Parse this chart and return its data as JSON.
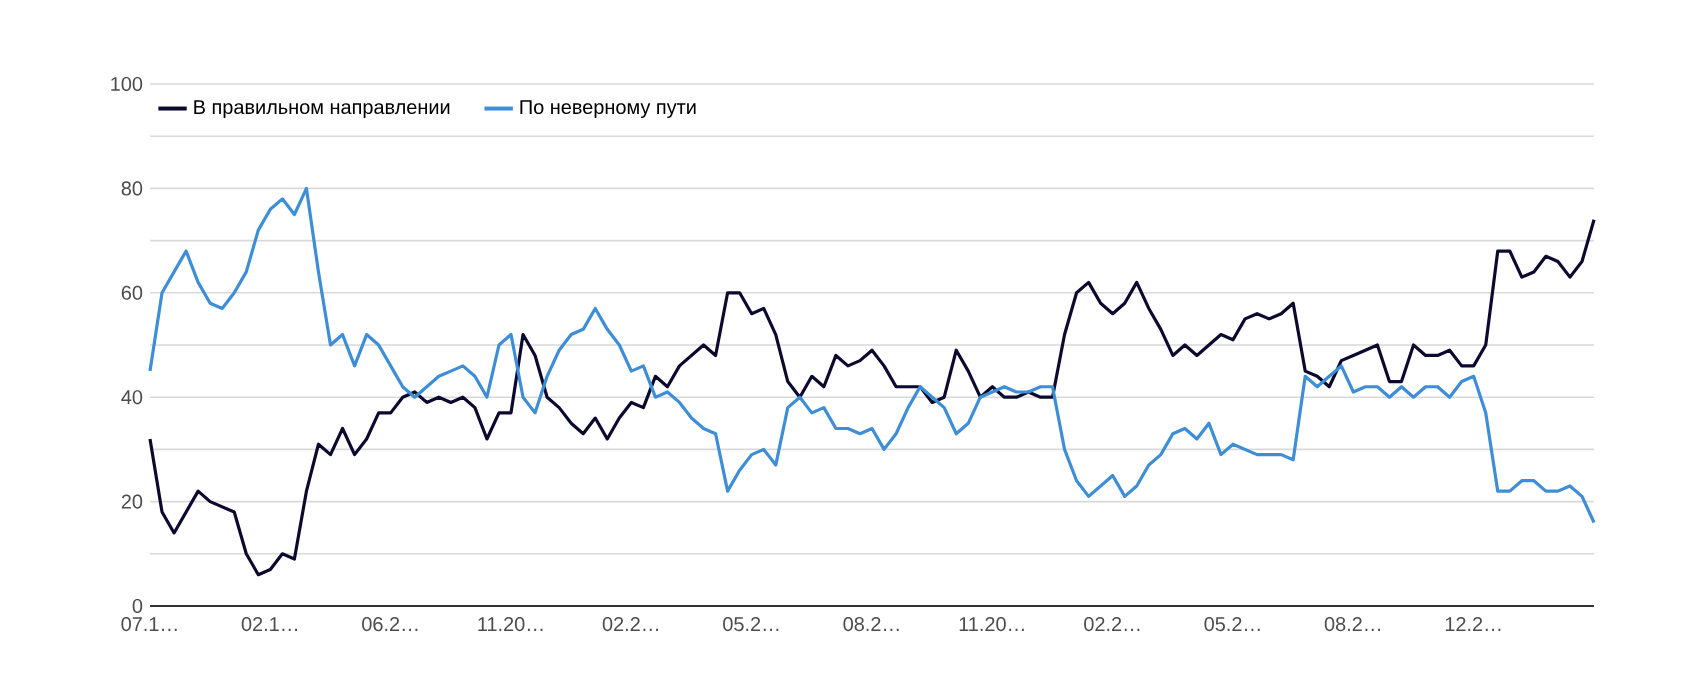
{
  "chart_data": {
    "type": "line",
    "categories": [
      "07.1…",
      null,
      null,
      null,
      null,
      null,
      null,
      null,
      null,
      null,
      "02.1…",
      null,
      null,
      null,
      null,
      null,
      null,
      null,
      null,
      null,
      "06.2…",
      null,
      null,
      null,
      null,
      null,
      null,
      null,
      null,
      null,
      "11.20…",
      null,
      null,
      null,
      null,
      null,
      null,
      null,
      null,
      null,
      "02.2…",
      null,
      null,
      null,
      null,
      null,
      null,
      null,
      null,
      null,
      "05.2…",
      null,
      null,
      null,
      null,
      null,
      null,
      null,
      null,
      null,
      "08.2…",
      null,
      null,
      null,
      null,
      null,
      null,
      null,
      null,
      null,
      "11.20…",
      null,
      null,
      null,
      null,
      null,
      null,
      null,
      null,
      null,
      "02.2…",
      null,
      null,
      null,
      null,
      null,
      null,
      null,
      null,
      null,
      "05.2…",
      null,
      null,
      null,
      null,
      null,
      null,
      null,
      null,
      null,
      "08.2…",
      null,
      null,
      null,
      null,
      null,
      null,
      null,
      null,
      null,
      "12.2…",
      null,
      null,
      null,
      null,
      null,
      null,
      null,
      null,
      null,
      null
    ],
    "series": [
      {
        "name": "В правильном направлении",
        "color": "#0b0a2e",
        "values": [
          32,
          18,
          14,
          18,
          22,
          20,
          19,
          18,
          10,
          6,
          7,
          10,
          9,
          22,
          31,
          29,
          34,
          29,
          32,
          37,
          37,
          40,
          41,
          39,
          40,
          39,
          40,
          38,
          32,
          37,
          37,
          52,
          48,
          40,
          38,
          35,
          33,
          36,
          32,
          36,
          39,
          38,
          44,
          42,
          46,
          48,
          50,
          48,
          60,
          60,
          56,
          57,
          52,
          43,
          40,
          44,
          42,
          48,
          46,
          47,
          49,
          46,
          42,
          42,
          42,
          39,
          40,
          49,
          45,
          40,
          42,
          40,
          40,
          41,
          40,
          40,
          52,
          60,
          62,
          58,
          56,
          58,
          62,
          57,
          53,
          48,
          50,
          48,
          50,
          52,
          51,
          55,
          56,
          55,
          56,
          58,
          45,
          44,
          42,
          47,
          48,
          49,
          50,
          43,
          43,
          50,
          48,
          48,
          49,
          46,
          46,
          50,
          68,
          68,
          63,
          64,
          67,
          66,
          63,
          66,
          74
        ]
      },
      {
        "name": "По неверному пути",
        "color": "#3d8ed6",
        "values": [
          45,
          60,
          64,
          68,
          62,
          58,
          57,
          60,
          64,
          72,
          76,
          78,
          75,
          80,
          64,
          50,
          52,
          46,
          52,
          50,
          46,
          42,
          40,
          42,
          44,
          45,
          46,
          44,
          40,
          50,
          52,
          40,
          37,
          44,
          49,
          52,
          53,
          57,
          53,
          50,
          45,
          46,
          40,
          41,
          39,
          36,
          34,
          33,
          22,
          26,
          29,
          30,
          27,
          38,
          40,
          37,
          38,
          34,
          34,
          33,
          34,
          30,
          33,
          38,
          42,
          40,
          38,
          33,
          35,
          40,
          41,
          42,
          41,
          41,
          42,
          42,
          30,
          24,
          21,
          23,
          25,
          21,
          23,
          27,
          29,
          33,
          34,
          32,
          35,
          29,
          31,
          30,
          29,
          29,
          29,
          28,
          44,
          42,
          44,
          46,
          41,
          42,
          42,
          40,
          42,
          40,
          42,
          42,
          40,
          43,
          44,
          37,
          22,
          22,
          24,
          24,
          22,
          22,
          23,
          21,
          16
        ]
      }
    ],
    "ylim": [
      0,
      100
    ],
    "yticks": [
      0,
      {
        "value": 10,
        "label": null
      },
      20,
      {
        "value": 30,
        "label": null
      },
      40,
      {
        "value": 50,
        "label": null
      },
      60,
      {
        "value": 70,
        "label": null
      },
      80,
      {
        "value": 90,
        "label": null
      },
      100
    ],
    "grid": "y",
    "legend": "top left",
    "marker": "none",
    "line_style": "solid"
  }
}
